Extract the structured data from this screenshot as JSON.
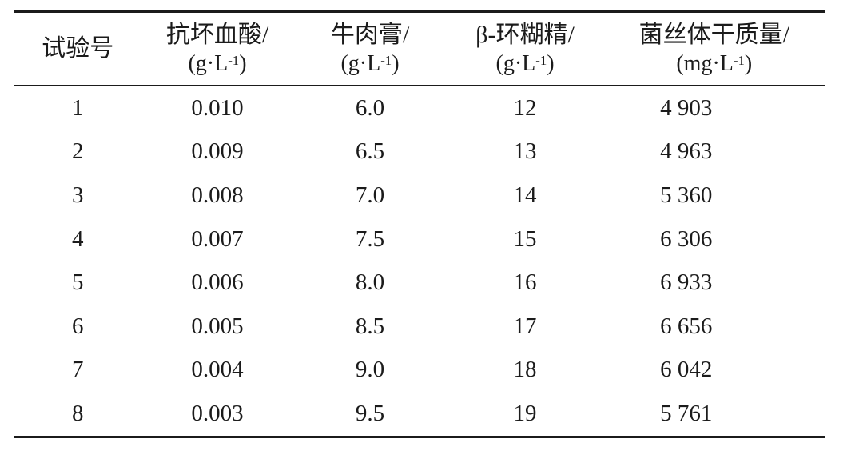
{
  "page": {
    "background_color": "#ffffff",
    "text_color": "#1b1b1b",
    "rule_color": "#1b1b1b"
  },
  "table": {
    "columns": [
      {
        "title": "试验号",
        "unit_prefix": "",
        "unit_sup": "",
        "unit_suffix": ""
      },
      {
        "title": "抗坏血酸/",
        "unit_prefix": "(g·L",
        "unit_sup": "-1",
        "unit_suffix": ")"
      },
      {
        "title": "牛肉膏/",
        "unit_prefix": "(g·L",
        "unit_sup": "-1",
        "unit_suffix": ")"
      },
      {
        "title": "β-环糊精/",
        "unit_prefix": "(g·L",
        "unit_sup": "-1",
        "unit_suffix": ")"
      },
      {
        "title": "菌丝体干质量/",
        "unit_prefix": "(mg·L",
        "unit_sup": "-1",
        "unit_suffix": ")"
      }
    ],
    "rows": [
      [
        "1",
        "0.010",
        "6.0",
        "12",
        "4 903"
      ],
      [
        "2",
        "0.009",
        "6.5",
        "13",
        "4 963"
      ],
      [
        "3",
        "0.008",
        "7.0",
        "14",
        "5 360"
      ],
      [
        "4",
        "0.007",
        "7.5",
        "15",
        "6 306"
      ],
      [
        "5",
        "0.006",
        "8.0",
        "16",
        "6 933"
      ],
      [
        "6",
        "0.005",
        "8.5",
        "17",
        "6 656"
      ],
      [
        "7",
        "0.004",
        "9.0",
        "18",
        "6 042"
      ],
      [
        "8",
        "0.003",
        "9.5",
        "19",
        "5 761"
      ]
    ]
  },
  "chart_data": {
    "type": "table",
    "columns": [
      "试验号",
      "抗坏血酸/(g·L⁻¹)",
      "牛肉膏/(g·L⁻¹)",
      "β-环糊精/(g·L⁻¹)",
      "菌丝体干质量/(mg·L⁻¹)"
    ],
    "rows": [
      [
        1,
        0.01,
        6.0,
        12,
        4903
      ],
      [
        2,
        0.009,
        6.5,
        13,
        4963
      ],
      [
        3,
        0.008,
        7.0,
        14,
        5360
      ],
      [
        4,
        0.007,
        7.5,
        15,
        6306
      ],
      [
        5,
        0.006,
        8.0,
        16,
        6933
      ],
      [
        6,
        0.005,
        8.5,
        17,
        6656
      ],
      [
        7,
        0.004,
        9.0,
        18,
        6042
      ],
      [
        8,
        0.003,
        9.5,
        19,
        5761
      ]
    ]
  }
}
